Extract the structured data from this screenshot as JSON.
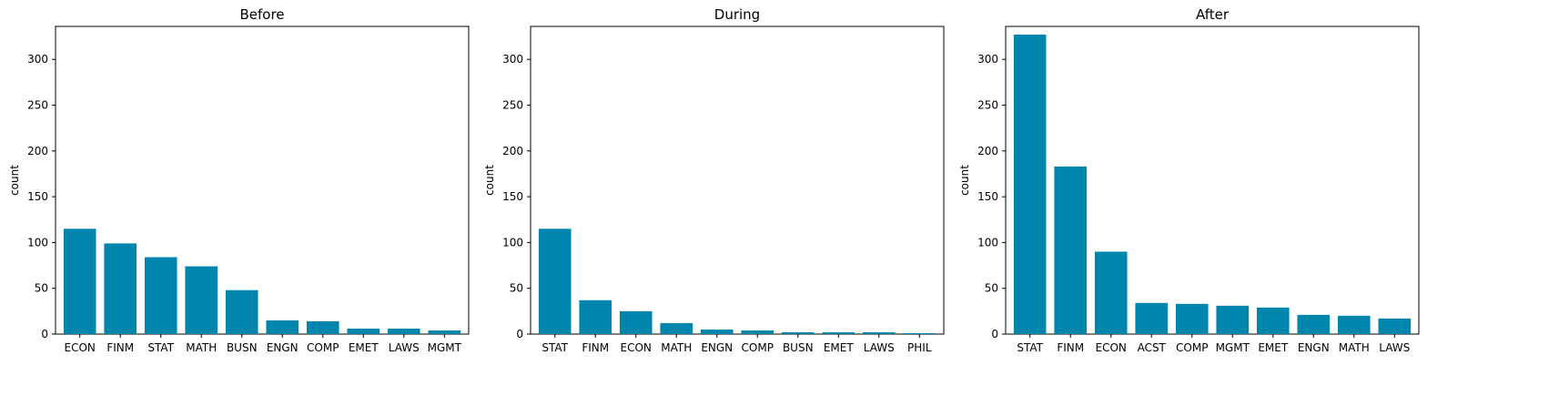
{
  "chart_data": [
    {
      "type": "bar",
      "title": "Before",
      "xlabel": "",
      "ylabel": "count",
      "ylim": [
        0,
        336
      ],
      "yticks": [
        0,
        50,
        100,
        150,
        200,
        250,
        300
      ],
      "categories": [
        "ECON",
        "FINM",
        "STAT",
        "MATH",
        "BUSN",
        "ENGN",
        "COMP",
        "EMET",
        "LAWS",
        "MGMT"
      ],
      "values": [
        115,
        99,
        84,
        74,
        48,
        15,
        14,
        6,
        6,
        4
      ],
      "grid": false,
      "color": "#0086ad"
    },
    {
      "type": "bar",
      "title": "During",
      "xlabel": "",
      "ylabel": "count",
      "ylim": [
        0,
        336
      ],
      "yticks": [
        0,
        50,
        100,
        150,
        200,
        250,
        300
      ],
      "categories": [
        "STAT",
        "FINM",
        "ECON",
        "MATH",
        "ENGN",
        "COMP",
        "BUSN",
        "EMET",
        "LAWS",
        "PHIL"
      ],
      "values": [
        115,
        37,
        25,
        12,
        5,
        4,
        2,
        2,
        2,
        1
      ],
      "grid": false,
      "color": "#0086ad"
    },
    {
      "type": "bar",
      "title": "After",
      "xlabel": "",
      "ylabel": "count",
      "ylim": [
        0,
        336
      ],
      "yticks": [
        0,
        50,
        100,
        150,
        200,
        250,
        300
      ],
      "categories": [
        "STAT",
        "FINM",
        "ECON",
        "ACST",
        "COMP",
        "MGMT",
        "EMET",
        "ENGN",
        "MATH",
        "LAWS"
      ],
      "values": [
        327,
        183,
        90,
        34,
        33,
        31,
        29,
        21,
        20,
        17
      ],
      "grid": false,
      "color": "#0086ad"
    }
  ]
}
